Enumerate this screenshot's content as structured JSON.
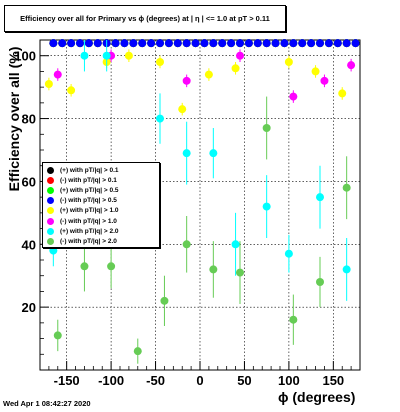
{
  "title": "Efficiency over all for Primary vs ϕ (degrees) at | η | <= 1.0 at pT > 0.11",
  "timestamp": "Wed Apr  1 08:42:27 2020",
  "chart_data": {
    "type": "scatter",
    "xlabel": "ϕ (degrees)",
    "ylabel": "Efficiency over all (%)",
    "xlim": [
      -180,
      180
    ],
    "ylim": [
      0,
      105
    ],
    "xticks": [
      -150,
      -100,
      -50,
      0,
      50,
      100,
      150
    ],
    "yticks": [
      20,
      40,
      60,
      80,
      100
    ],
    "grid": true,
    "legend_position": "left-middle",
    "series": [
      {
        "name": "(+) with pT/|q| > 0.1",
        "color": "#000000",
        "x": [
          -165,
          -155,
          -145,
          -135,
          -125,
          -115,
          -105,
          -95,
          -85,
          -75,
          -65,
          -55,
          -45,
          -35,
          -25,
          -15,
          -5,
          5,
          15,
          25,
          35,
          45,
          55,
          65,
          75,
          85,
          95,
          105,
          115,
          125,
          135,
          145,
          155,
          165,
          175
        ],
        "y": [
          104,
          104,
          104,
          104,
          104,
          104,
          104,
          104,
          104,
          104,
          104,
          104,
          104,
          104,
          104,
          104,
          104,
          104,
          104,
          104,
          104,
          104,
          104,
          104,
          104,
          104,
          104,
          104,
          104,
          104,
          104,
          104,
          104,
          104,
          104
        ],
        "err": []
      },
      {
        "name": "(-) with pT/|q| > 0.1",
        "color": "#ff0000",
        "x": [
          -165,
          -155,
          -145,
          -135,
          -125,
          -115,
          -105,
          -95,
          -85,
          -75,
          -65,
          -55,
          -45,
          -35,
          -25,
          -15,
          -5,
          5,
          15,
          25,
          35,
          45,
          55,
          65,
          75,
          85,
          95,
          105,
          115,
          125,
          135,
          145,
          155,
          165,
          175
        ],
        "y": [
          104,
          104,
          104,
          104,
          104,
          104,
          104,
          104,
          104,
          104,
          104,
          104,
          104,
          104,
          104,
          104,
          104,
          104,
          104,
          104,
          104,
          104,
          104,
          104,
          104,
          104,
          104,
          104,
          104,
          104,
          104,
          104,
          104,
          104,
          104
        ],
        "err": []
      },
      {
        "name": "(+) with pT/|q| > 0.5",
        "color": "#00ff00",
        "x": [
          -165,
          -155,
          -145,
          -135,
          -125,
          -115,
          -105,
          -95,
          -85,
          -75,
          -65,
          -55,
          -45,
          -35,
          -25,
          -15,
          -5,
          5,
          15,
          25,
          35,
          45,
          55,
          65,
          75,
          85,
          95,
          105,
          115,
          125,
          135,
          145,
          155,
          165,
          175
        ],
        "y": [
          104,
          104,
          104,
          104,
          104,
          104,
          104,
          104,
          104,
          104,
          104,
          104,
          104,
          104,
          104,
          104,
          104,
          104,
          104,
          104,
          104,
          104,
          104,
          104,
          104,
          104,
          104,
          104,
          104,
          104,
          104,
          104,
          104,
          104,
          104
        ],
        "err": []
      },
      {
        "name": "(-) with pT/|q| > 0.5",
        "color": "#0000ff",
        "x": [
          -165,
          -155,
          -145,
          -135,
          -125,
          -115,
          -105,
          -95,
          -85,
          -75,
          -65,
          -55,
          -45,
          -35,
          -25,
          -15,
          -5,
          5,
          15,
          25,
          35,
          45,
          55,
          65,
          75,
          85,
          95,
          105,
          115,
          125,
          135,
          145,
          155,
          165,
          175
        ],
        "y": [
          104,
          104,
          104,
          104,
          104,
          104,
          104,
          104,
          104,
          104,
          104,
          104,
          104,
          104,
          104,
          104,
          104,
          104,
          104,
          104,
          104,
          104,
          104,
          104,
          104,
          104,
          104,
          104,
          104,
          104,
          104,
          104,
          104,
          104,
          104
        ],
        "err": []
      },
      {
        "name": "(+) with pT/|q| > 1.0",
        "color": "#ffff00",
        "x": [
          -170,
          -145,
          -105,
          -80,
          -45,
          -20,
          10,
          40,
          100,
          130,
          160
        ],
        "y": [
          91,
          89,
          98,
          100,
          98,
          83,
          94,
          96,
          98,
          95,
          88
        ],
        "err": [
          2,
          2,
          2,
          2,
          2,
          2,
          2,
          2,
          2,
          2,
          2
        ]
      },
      {
        "name": "(-) with pT/|q| > 1.0",
        "color": "#ff00ff",
        "x": [
          -160,
          -100,
          -15,
          45,
          105,
          140,
          170
        ],
        "y": [
          94,
          100,
          92,
          100,
          87,
          92,
          97
        ],
        "err": [
          2,
          2,
          2,
          2,
          2,
          2,
          2
        ]
      },
      {
        "name": "(+) with pT/|q| > 2.0",
        "color": "#00ffff",
        "x": [
          -165,
          -130,
          -105,
          -45,
          -15,
          15,
          40,
          75,
          100,
          135,
          165
        ],
        "y": [
          38,
          100,
          100,
          80,
          69,
          69,
          40,
          52,
          37,
          55,
          32
        ],
        "err": [
          5,
          5,
          5,
          8,
          10,
          8,
          10,
          10,
          6,
          10,
          10
        ]
      },
      {
        "name": "(-) with pT/|q| > 2.0",
        "color": "#66cc55",
        "x": [
          -160,
          -130,
          -100,
          -70,
          -40,
          -15,
          15,
          45,
          75,
          105,
          135,
          165
        ],
        "y": [
          11,
          33,
          33,
          6,
          22,
          40,
          32,
          31,
          77,
          16,
          28,
          58
        ],
        "err": [
          5,
          8,
          7,
          4,
          8,
          9,
          9,
          10,
          10,
          8,
          8,
          10
        ]
      }
    ]
  }
}
